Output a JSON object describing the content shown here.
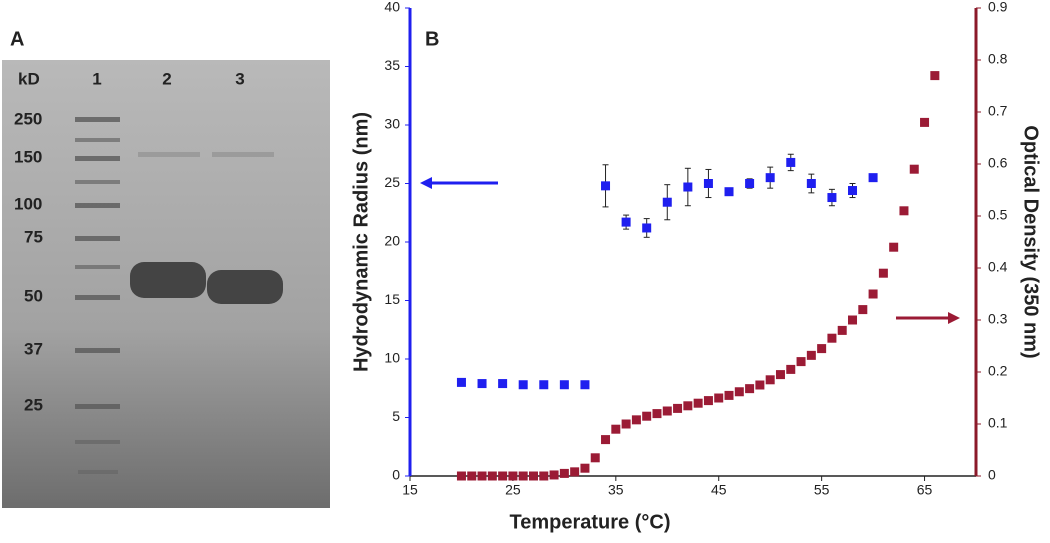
{
  "panel_a": {
    "panel_label": "A",
    "unit_label": "kD",
    "lanes": [
      "1",
      "2",
      "3"
    ],
    "markers": [
      "250",
      "150",
      "100",
      "75",
      "50",
      "37",
      "25"
    ]
  },
  "chart_data": {
    "type": "scatter",
    "panel_label": "B",
    "x_label": "Temperature (°C)",
    "y_label": "Hydrodynamic Radius (nm)",
    "y2_label": "Optical Density (350 nm)",
    "xlim": [
      15,
      70
    ],
    "xticks": [
      15,
      25,
      35,
      45,
      55,
      65
    ],
    "ylim": [
      0,
      40
    ],
    "yticks": [
      0,
      5,
      10,
      15,
      20,
      25,
      30,
      35,
      40
    ],
    "y2lim": [
      0,
      0.9
    ],
    "y2ticks": [
      0,
      0.1,
      0.2,
      0.3,
      0.4,
      0.5,
      0.6,
      0.7,
      0.8,
      0.9
    ],
    "y_axis_color": "#1f1fef",
    "y2_axis_color": "#8b1a2a",
    "series": [
      {
        "color": "#1f1fef",
        "axis": "y",
        "x": [
          20,
          22,
          24,
          26,
          28,
          30,
          32,
          34,
          36,
          38,
          40,
          42,
          44,
          46,
          48,
          50,
          52,
          54,
          56,
          58,
          60
        ],
        "values": [
          8.0,
          7.9,
          7.9,
          7.8,
          7.8,
          7.8,
          7.8,
          24.8,
          21.7,
          21.2,
          23.4,
          24.7,
          25.0,
          24.3,
          25.0,
          25.5,
          26.8,
          25.0,
          23.8,
          24.4,
          25.5
        ],
        "errors": [
          null,
          null,
          null,
          null,
          null,
          null,
          null,
          1.8,
          0.6,
          0.8,
          1.5,
          1.6,
          1.2,
          0.3,
          0.4,
          0.9,
          0.7,
          0.8,
          0.7,
          0.6,
          0.3
        ]
      },
      {
        "color": "#9b1b35",
        "axis": "y2",
        "x": [
          20,
          21,
          22,
          23,
          24,
          25,
          26,
          27,
          28,
          29,
          30,
          31,
          32,
          33,
          34,
          35,
          36,
          37,
          38,
          39,
          40,
          41,
          42,
          43,
          44,
          45,
          46,
          47,
          48,
          49,
          50,
          51,
          52,
          53,
          54,
          55,
          56,
          57,
          58,
          59,
          60,
          61,
          62,
          63,
          64,
          65,
          66
        ],
        "values": [
          0,
          0,
          0,
          0,
          0,
          0,
          0,
          0,
          0,
          0.002,
          0.005,
          0.008,
          0.015,
          0.035,
          0.07,
          0.09,
          0.1,
          0.108,
          0.115,
          0.12,
          0.125,
          0.13,
          0.135,
          0.14,
          0.145,
          0.15,
          0.155,
          0.162,
          0.168,
          0.175,
          0.185,
          0.195,
          0.205,
          0.22,
          0.232,
          0.245,
          0.265,
          0.28,
          0.3,
          0.32,
          0.35,
          0.39,
          0.44,
          0.51,
          0.59,
          0.68,
          0.77
        ]
      }
    ]
  }
}
